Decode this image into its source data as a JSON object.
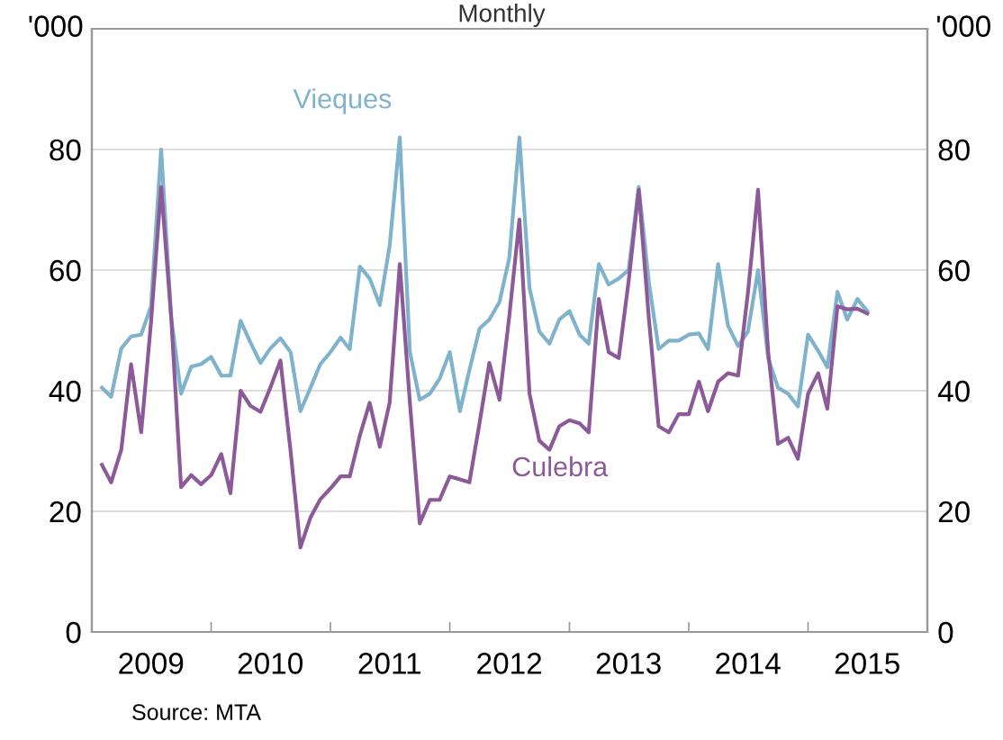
{
  "chart_data": {
    "type": "line",
    "title": "Monthly",
    "ylabel": "'000",
    "y2label": "'000",
    "x": [
      "2009-02",
      "2009-03",
      "2009-04",
      "2009-05",
      "2009-06",
      "2009-07",
      "2009-08",
      "2009-09",
      "2009-10",
      "2009-11",
      "2009-12",
      "2010-01",
      "2010-02",
      "2010-03",
      "2010-04",
      "2010-05",
      "2010-06",
      "2010-07",
      "2010-08",
      "2010-09",
      "2010-10",
      "2010-11",
      "2010-12",
      "2011-01",
      "2011-02",
      "2011-03",
      "2011-04",
      "2011-05",
      "2011-06",
      "2011-07",
      "2011-08",
      "2011-09",
      "2011-10",
      "2011-11",
      "2011-12",
      "2012-01",
      "2012-02",
      "2012-03",
      "2012-04",
      "2012-05",
      "2012-06",
      "2012-07",
      "2012-08",
      "2012-09",
      "2012-10",
      "2012-11",
      "2012-12",
      "2013-01",
      "2013-02",
      "2013-03",
      "2013-04",
      "2013-05",
      "2013-06",
      "2013-07",
      "2013-08",
      "2013-09",
      "2013-10",
      "2013-11",
      "2013-12",
      "2014-01",
      "2014-02",
      "2014-03",
      "2014-04",
      "2014-05",
      "2014-06",
      "2014-07",
      "2014-08",
      "2014-09",
      "2014-10",
      "2014-11",
      "2014-12",
      "2015-01",
      "2015-02",
      "2015-03",
      "2015-04",
      "2015-05",
      "2015-06",
      "2015-07"
    ],
    "series": [
      {
        "name": "Vieques",
        "color": "#7fb3cb",
        "values": [
          40.5,
          39,
          47,
          49,
          49.3,
          54,
          80,
          52,
          39.5,
          44,
          44.4,
          45.6,
          42.5,
          42.5,
          51.6,
          48,
          44.6,
          47,
          48.7,
          46.4,
          36.6,
          40.5,
          44.4,
          46.4,
          48.8,
          46.9,
          60.6,
          58.6,
          54.2,
          64,
          82,
          46.4,
          38.5,
          39.5,
          42,
          46.4,
          36.6,
          43.4,
          50.3,
          51.8,
          54.7,
          62,
          82,
          57,
          49.8,
          47.8,
          51.8,
          53.2,
          49.3,
          47.8,
          61,
          57.6,
          58.6,
          60,
          73.8,
          58,
          46.9,
          48.3,
          48.3,
          49.3,
          49.5,
          46.9,
          61,
          50.8,
          47.4,
          49.8,
          60,
          45.4,
          40.5,
          39.5,
          37.4,
          49.3,
          46.6,
          43.9,
          56.4,
          51.8,
          55.2,
          53.2
        ]
      },
      {
        "name": "Culebra",
        "color": "#8c5a98",
        "values": [
          27.7,
          24.8,
          30.2,
          44.4,
          33.1,
          51.3,
          73.8,
          52,
          24,
          26,
          24.5,
          26,
          29.5,
          23,
          40,
          37.5,
          36.5,
          40.5,
          45,
          30,
          14,
          19,
          22,
          23.8,
          25.8,
          25.8,
          32.6,
          38,
          30.7,
          38,
          61,
          38,
          18,
          21.9,
          21.9,
          25.8,
          25.3,
          24.8,
          34.6,
          44.6,
          38.5,
          52.3,
          68.4,
          39.5,
          31.7,
          30.2,
          34.1,
          35.1,
          34.6,
          33.1,
          55.2,
          46.4,
          45.4,
          58.1,
          73.3,
          52,
          34.1,
          33.1,
          36.1,
          36.1,
          41.5,
          36.6,
          41.5,
          42.9,
          42.5,
          56.2,
          73.3,
          46.4,
          31.2,
          32.2,
          28.7,
          39.5,
          42.9,
          37,
          54,
          53.5,
          53.6,
          52.8
        ]
      }
    ],
    "xlim": [
      "2009-01",
      "2016-01"
    ],
    "xticks": [
      {
        "value": "2009-07",
        "label": "2009"
      },
      {
        "value": "2010-07",
        "label": "2010"
      },
      {
        "value": "2011-07",
        "label": "2011"
      },
      {
        "value": "2012-07",
        "label": "2012"
      },
      {
        "value": "2013-07",
        "label": "2013"
      },
      {
        "value": "2014-07",
        "label": "2014"
      },
      {
        "value": "2015-07",
        "label": "2015"
      },
      {
        "value": "2010-01",
        "label": null
      },
      {
        "value": "2011-01",
        "label": null
      },
      {
        "value": "2012-01",
        "label": null
      },
      {
        "value": "2013-01",
        "label": null
      },
      {
        "value": "2014-01",
        "label": null
      },
      {
        "value": "2015-01",
        "label": null
      }
    ],
    "ylim": [
      0,
      100
    ],
    "yticks": [
      0,
      20,
      40,
      60,
      80
    ],
    "y2lim": [
      0,
      100
    ],
    "y2ticks": [
      0,
      20,
      40,
      60,
      80
    ],
    "grid": "y",
    "legend": false,
    "annotations": [
      "Source: MTA"
    ]
  }
}
